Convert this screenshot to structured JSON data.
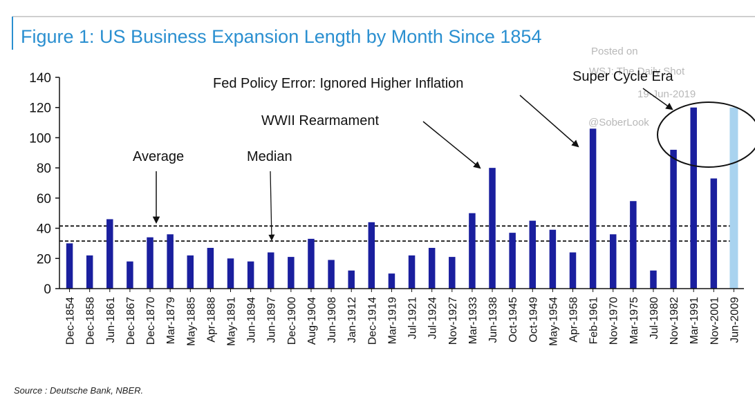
{
  "chart_data": {
    "type": "bar",
    "title": "Figure 1: US Business Expansion Length by Month Since 1854",
    "categories": [
      "Dec-1854",
      "Dec-1858",
      "Jun-1861",
      "Dec-1867",
      "Dec-1870",
      "Mar-1879",
      "May-1885",
      "Apr-1888",
      "May-1891",
      "Jun-1894",
      "Jun-1897",
      "Dec-1900",
      "Aug-1904",
      "Jun-1908",
      "Jan-1912",
      "Dec-1914",
      "Mar-1919",
      "Jul-1921",
      "Jul-1924",
      "Nov-1927",
      "Mar-1933",
      "Jun-1938",
      "Oct-1945",
      "Oct-1949",
      "May-1954",
      "Apr-1958",
      "Feb-1961",
      "Nov-1970",
      "Mar-1975",
      "Jul-1980",
      "Nov-1982",
      "Mar-1991",
      "Nov-2001",
      "Jun-2009"
    ],
    "values": [
      30,
      22,
      46,
      18,
      34,
      36,
      22,
      27,
      20,
      18,
      24,
      21,
      33,
      19,
      12,
      44,
      10,
      22,
      27,
      21,
      50,
      80,
      37,
      45,
      39,
      24,
      106,
      36,
      58,
      12,
      92,
      120,
      73,
      120
    ],
    "highlight_index": 33,
    "yticks": [
      0,
      20,
      40,
      60,
      80,
      100,
      120,
      140
    ],
    "ylim": [
      0,
      140
    ],
    "reference_lines": [
      {
        "label": "Average",
        "value": 41.5
      },
      {
        "label": "Median",
        "value": 31.5
      }
    ],
    "annotations": {
      "average": "Average",
      "median": "Median",
      "wwii": "WWII Rearmament",
      "fed": "Fed Policy Error: Ignored Higher Inflation",
      "super": "Super Cycle Era"
    },
    "colors": {
      "bar": "#1a1f9e",
      "highlight": "#a9d3ef",
      "title": "#2a8fd0"
    }
  },
  "watermark": {
    "line1": "Posted on",
    "line2": "WSJ: The Daily Shot",
    "line3": "19-Jun-2019",
    "line4": "@SoberLook"
  },
  "source": "Source : Deutsche Bank, NBER."
}
